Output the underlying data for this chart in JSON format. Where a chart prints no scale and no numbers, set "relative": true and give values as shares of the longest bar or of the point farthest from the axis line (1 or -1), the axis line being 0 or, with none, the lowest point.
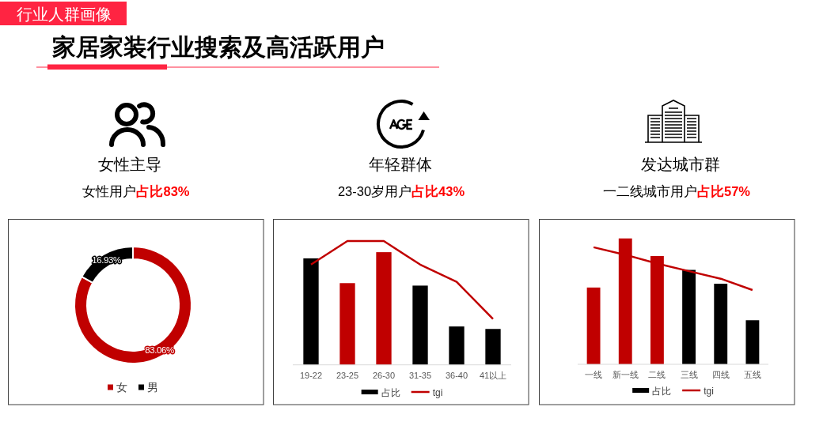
{
  "chart_data": [
    {
      "type": "other",
      "title": "家居家装行业搜索及高活跃用户",
      "annotations": [
        "行业人群画像"
      ]
    },
    {
      "type": "donut",
      "title": "女性主导",
      "subtitle": "女性用户**占比83%**",
      "categories": [
        "女",
        "男"
      ],
      "values": [
        83.06,
        16.93
      ],
      "colors": [
        "#c00000",
        "#000000"
      ],
      "value_labels": [
        "83.06%",
        "16.93%"
      ],
      "legend": "bottom"
    },
    {
      "type": "bar",
      "title": "年轻群体",
      "subtitle": "23-30岁用户**占比43%**",
      "categories": [
        "19-22",
        "23-25",
        "26-30",
        "31-35",
        "36-40",
        "41以上"
      ],
      "relative": true,
      "legend": "bottom",
      "series": [
        {
          "name": "占比",
          "type": "bar",
          "color": "#000000",
          "colors": [
            "#000000",
            "#c00000",
            "#c00000",
            "#000000",
            "#000000",
            "#000000"
          ],
          "values": [
            0.86,
            0.66,
            0.91,
            0.64,
            0.31,
            0.29
          ]
        },
        {
          "name": "tgi",
          "type": "line",
          "color": "#c00000",
          "values": [
            0.81,
            1,
            1,
            0.81,
            0.67,
            0.37
          ]
        }
      ]
    },
    {
      "type": "bar",
      "title": "发达城市群",
      "subtitle": "一二线城市用户**占比57%**",
      "categories": [
        "一线",
        "新一线",
        "二线",
        "三线",
        "四线",
        "五线"
      ],
      "relative": true,
      "legend": "bottom",
      "series": [
        {
          "name": "占比",
          "type": "bar",
          "color": "#000000",
          "colors": [
            "#c00000",
            "#c00000",
            "#c00000",
            "#000000",
            "#000000",
            "#000000"
          ],
          "values": [
            0.61,
            1,
            0.86,
            0.75,
            0.64,
            0.35
          ]
        },
        {
          "name": "tgi",
          "type": "line",
          "color": "#c00000",
          "values": [
            0.93,
            0.87,
            0.8,
            0.74,
            0.68,
            0.59
          ]
        }
      ]
    }
  ]
}
